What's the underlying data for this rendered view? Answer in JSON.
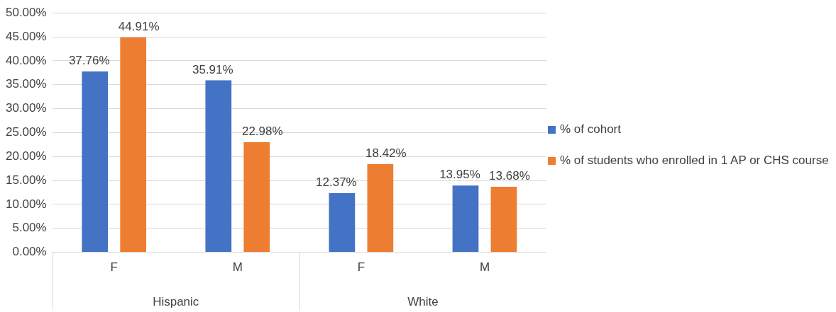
{
  "chart_data": {
    "type": "bar",
    "categories": [
      "F",
      "M",
      "F",
      "M"
    ],
    "annotations": [
      "Hispanic",
      "White"
    ],
    "series": [
      {
        "name": "% of cohort",
        "color": "#4472c4",
        "values": [
          37.76,
          35.91,
          12.37,
          13.95
        ],
        "value_labels": [
          "37.76%",
          "35.91%",
          "12.37%",
          "13.95%"
        ]
      },
      {
        "name": "% of students who enrolled in 1 AP or CHS course",
        "color": "#ed7d31",
        "values": [
          44.91,
          22.98,
          18.42,
          13.68
        ],
        "value_labels": [
          "44.91%",
          "22.98%",
          "18.42%",
          "13.68%"
        ]
      }
    ],
    "ylim": [
      0,
      50
    ],
    "yticks": [
      {
        "value": 0,
        "label": "0.00%"
      },
      {
        "value": 5,
        "label": "5.00%"
      },
      {
        "value": 10,
        "label": "10.00%"
      },
      {
        "value": 15,
        "label": "15.00%"
      },
      {
        "value": 20,
        "label": "20.00%"
      },
      {
        "value": 25,
        "label": "25.00%"
      },
      {
        "value": 30,
        "label": "30.00%"
      },
      {
        "value": 35,
        "label": "35.00%"
      },
      {
        "value": 40,
        "label": "40.00%"
      },
      {
        "value": 45,
        "label": "45.00%"
      },
      {
        "value": 50,
        "label": "50.00%"
      }
    ],
    "grid": "y",
    "legend": "right"
  }
}
